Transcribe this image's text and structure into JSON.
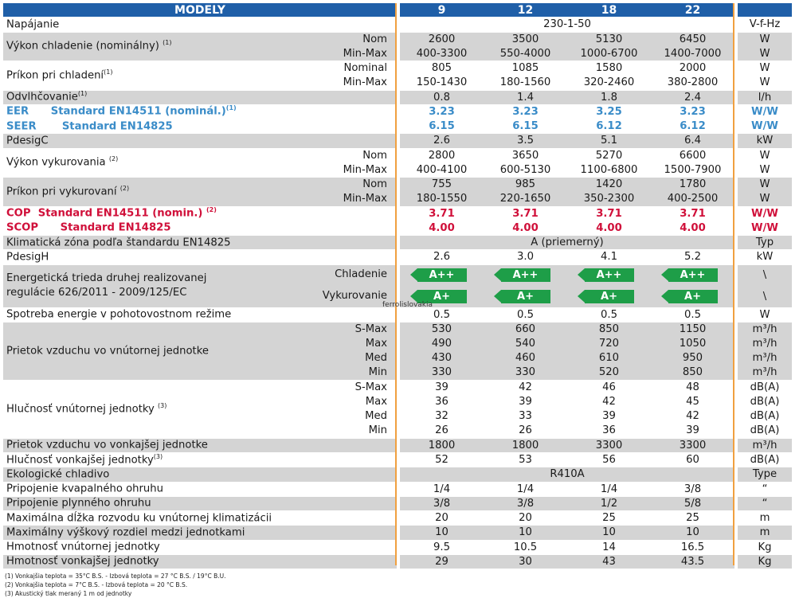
{
  "header": {
    "title": "MODELY",
    "models": [
      "9",
      "12",
      "18",
      "22"
    ]
  },
  "rows": {
    "napajanie": {
      "label": "Napájanie",
      "span": "230-1-50",
      "unit": "V-f-Hz"
    },
    "vykon_chl": {
      "label": "Výkon chladenie (nominálny)",
      "sup": "(1)",
      "sub1": "Nom",
      "sub2": "Min-Max",
      "v1": [
        "2600",
        "3500",
        "5130",
        "6450"
      ],
      "v2": [
        "400-3300",
        "550-4000",
        "1000-6700",
        "1400-7000"
      ],
      "u1": "W",
      "u2": "W"
    },
    "prikon_chl": {
      "label": "Príkon pri chladení",
      "sup": "(1)",
      "sub1": "Nominal",
      "sub2": "Min-Max",
      "v1": [
        "805",
        "1085",
        "1580",
        "2000"
      ],
      "v2": [
        "150-1430",
        "180-1560",
        "320-2460",
        "380-2800"
      ],
      "u1": "W",
      "u2": "W"
    },
    "odvlh": {
      "label": "Odvlhčovanie",
      "sup": "(1)",
      "v": [
        "0.8",
        "1.4",
        "1.8",
        "2.4"
      ],
      "unit": "l/h"
    },
    "eer": {
      "a": "EER",
      "b": "Standard EN14511 (nominál.)",
      "sup": "(1)",
      "v": [
        "3.23",
        "3.23",
        "3.25",
        "3.23"
      ],
      "unit": "W/W"
    },
    "seer": {
      "a": "SEER",
      "b": "Standard EN14825",
      "v": [
        "6.15",
        "6.15",
        "6.12",
        "6.12"
      ],
      "unit": "W/W"
    },
    "pdesigc": {
      "label": "PdesigC",
      "v": [
        "2.6",
        "3.5",
        "5.1",
        "6.4"
      ],
      "unit": "kW"
    },
    "vykon_vyk": {
      "label": "Výkon vykurovania",
      "sup": "(2)",
      "sub1": "Nom",
      "sub2": "Min-Max",
      "v1": [
        "2800",
        "3650",
        "5270",
        "6600"
      ],
      "v2": [
        "400-4100",
        "600-5130",
        "1100-6800",
        "1500-7900"
      ],
      "u1": "W",
      "u2": "W"
    },
    "prikon_vyk": {
      "label": "Príkon pri vykurovaní",
      "sup": "(2)",
      "sub1": "Nom",
      "sub2": "Min-Max",
      "v1": [
        "755",
        "985",
        "1420",
        "1780"
      ],
      "v2": [
        "180-1550",
        "220-1650",
        "350-2300",
        "400-2500"
      ],
      "u1": "W",
      "u2": "W"
    },
    "cop": {
      "a": "COP",
      "b": "Standard EN14511 (nomin.)",
      "sup": "(2)",
      "v": [
        "3.71",
        "3.71",
        "3.71",
        "3.71"
      ],
      "unit": "W/W"
    },
    "scop": {
      "a": "SCOP",
      "b": "Standard EN14825",
      "v": [
        "4.00",
        "4.00",
        "4.00",
        "4.00"
      ],
      "unit": "W/W"
    },
    "klim": {
      "label": "Klimatická zóna podľa štandardu EN14825",
      "span": "A (priemerný)",
      "unit": "Typ"
    },
    "pdesigh": {
      "label": "PdesigH",
      "v": [
        "2.6",
        "3.0",
        "4.1",
        "5.2"
      ],
      "unit": "kW"
    },
    "energ": {
      "label1": "Energetická trieda druhej realizovanej",
      "label2": "regulácie 626/2011 - 2009/125/EC",
      "sub1": "Chladenie",
      "sub2": "Vykurovanie",
      "b1": [
        "A++",
        "A++",
        "A++",
        "A++"
      ],
      "b2": [
        "A+",
        "A+",
        "A+",
        "A+"
      ],
      "u1": "\\",
      "u2": "\\"
    },
    "spotreba": {
      "label": "Spotreba energie v pohotovostnom režime",
      "v": [
        "0.5",
        "0.5",
        "0.5",
        "0.5"
      ],
      "unit": "W"
    },
    "prietok_vn": {
      "label": "Prietok vzduchu vo vnútornej jednotke",
      "subs": [
        "S-Max",
        "Max",
        "Med",
        "Min"
      ],
      "vals": [
        [
          "530",
          "660",
          "850",
          "1150"
        ],
        [
          "490",
          "540",
          "720",
          "1050"
        ],
        [
          "430",
          "460",
          "610",
          "950"
        ],
        [
          "330",
          "330",
          "520",
          "850"
        ]
      ],
      "units": [
        "m³/h",
        "m³/h",
        "m³/h",
        "m³/h"
      ]
    },
    "hluk_vn": {
      "label": "Hlučnosť vnútornej jednotky",
      "sup": "(3)",
      "subs": [
        "S-Max",
        "Max",
        "Med",
        "Min"
      ],
      "vals": [
        [
          "39",
          "42",
          "46",
          "48"
        ],
        [
          "36",
          "39",
          "42",
          "45"
        ],
        [
          "32",
          "33",
          "39",
          "42"
        ],
        [
          "26",
          "26",
          "36",
          "39"
        ]
      ],
      "units": [
        "dB(A)",
        "dB(A)",
        "dB(A)",
        "dB(A)"
      ]
    },
    "prietok_von": {
      "label": "Prietok vzduchu vo vonkajšej jednotke",
      "v": [
        "1800",
        "1800",
        "3300",
        "3300"
      ],
      "unit": "m³/h"
    },
    "hluk_von": {
      "label": "Hlučnosť vonkajšej jednotky",
      "sup": "(3)",
      "v": [
        "52",
        "53",
        "56",
        "60"
      ],
      "unit": "dB(A)"
    },
    "chladivo": {
      "label": "Ekologické chladivo",
      "span": "R410A",
      "unit": "Type"
    },
    "kvap": {
      "label": "Pripojenie kvapalného ohruhu",
      "v": [
        "1/4",
        "1/4",
        "1/4",
        "3/8"
      ],
      "unit": "“"
    },
    "plyn": {
      "label": "Pripojenie plynného ohruhu",
      "v": [
        "3/8",
        "3/8",
        "1/2",
        "5/8"
      ],
      "unit": "“"
    },
    "dlzka": {
      "label": "Maximálna dĺžka rozvodu ku vnútornej klimatizácii",
      "v": [
        "20",
        "20",
        "25",
        "25"
      ],
      "unit": "m"
    },
    "vyskovy": {
      "label": "Maximálny výškový rozdiel medzi jednotkami",
      "v": [
        "10",
        "10",
        "10",
        "10"
      ],
      "unit": "m"
    },
    "hm_vn": {
      "label": "Hmotnosť vnútornej jednotky",
      "v": [
        "9.5",
        "10.5",
        "14",
        "16.5"
      ],
      "unit": "Kg"
    },
    "hm_von": {
      "label": "Hmotnosť vonkajšej jednotky",
      "v": [
        "29",
        "30",
        "43",
        "43.5"
      ],
      "unit": "Kg"
    }
  },
  "watermark": "ferrolislovakia",
  "footnotes": [
    "(1) Vonkajšia teplota = 35°C B.S. - Izbová teplota = 27 °C  B.S. / 19°C B.U.",
    "(2) Vonkajšia teplota = 7°C B.S. - Izbová teplota = 20 °C  B.S.",
    "(3) Akustický tlak meraný 1 m od jednotky"
  ],
  "colors": {
    "header": "#1f5fa8",
    "blue": "#3a8cc8",
    "red": "#d0103a",
    "badge": "#1e9e48",
    "divider": "#f0a040"
  }
}
